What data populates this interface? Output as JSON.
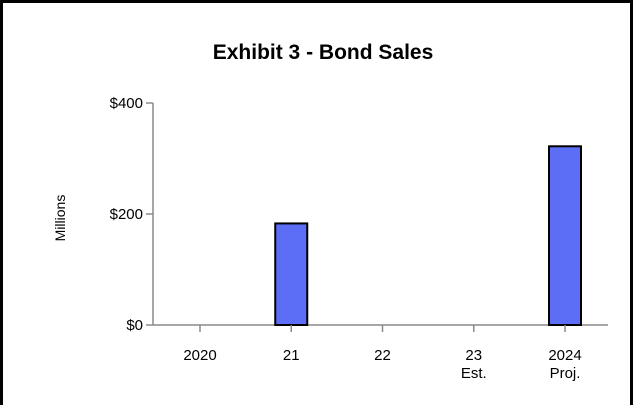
{
  "chart_data": {
    "type": "bar",
    "title": "Exhibit 3 - Bond Sales",
    "ylabel": "Millions",
    "xlabel": "",
    "categories": [
      [
        "2020"
      ],
      [
        "21"
      ],
      [
        "22"
      ],
      [
        "23",
        "Est."
      ],
      [
        "2024",
        "Proj."
      ]
    ],
    "values": [
      0,
      183,
      0,
      0,
      322
    ],
    "ylim": [
      0,
      400
    ],
    "yticks": [
      0,
      200,
      400
    ],
    "ytick_labels": [
      "$0",
      "$200",
      "$400"
    ],
    "grid": false,
    "bar_color": "#5b6ef5",
    "bar_edge_color": "#000000"
  }
}
